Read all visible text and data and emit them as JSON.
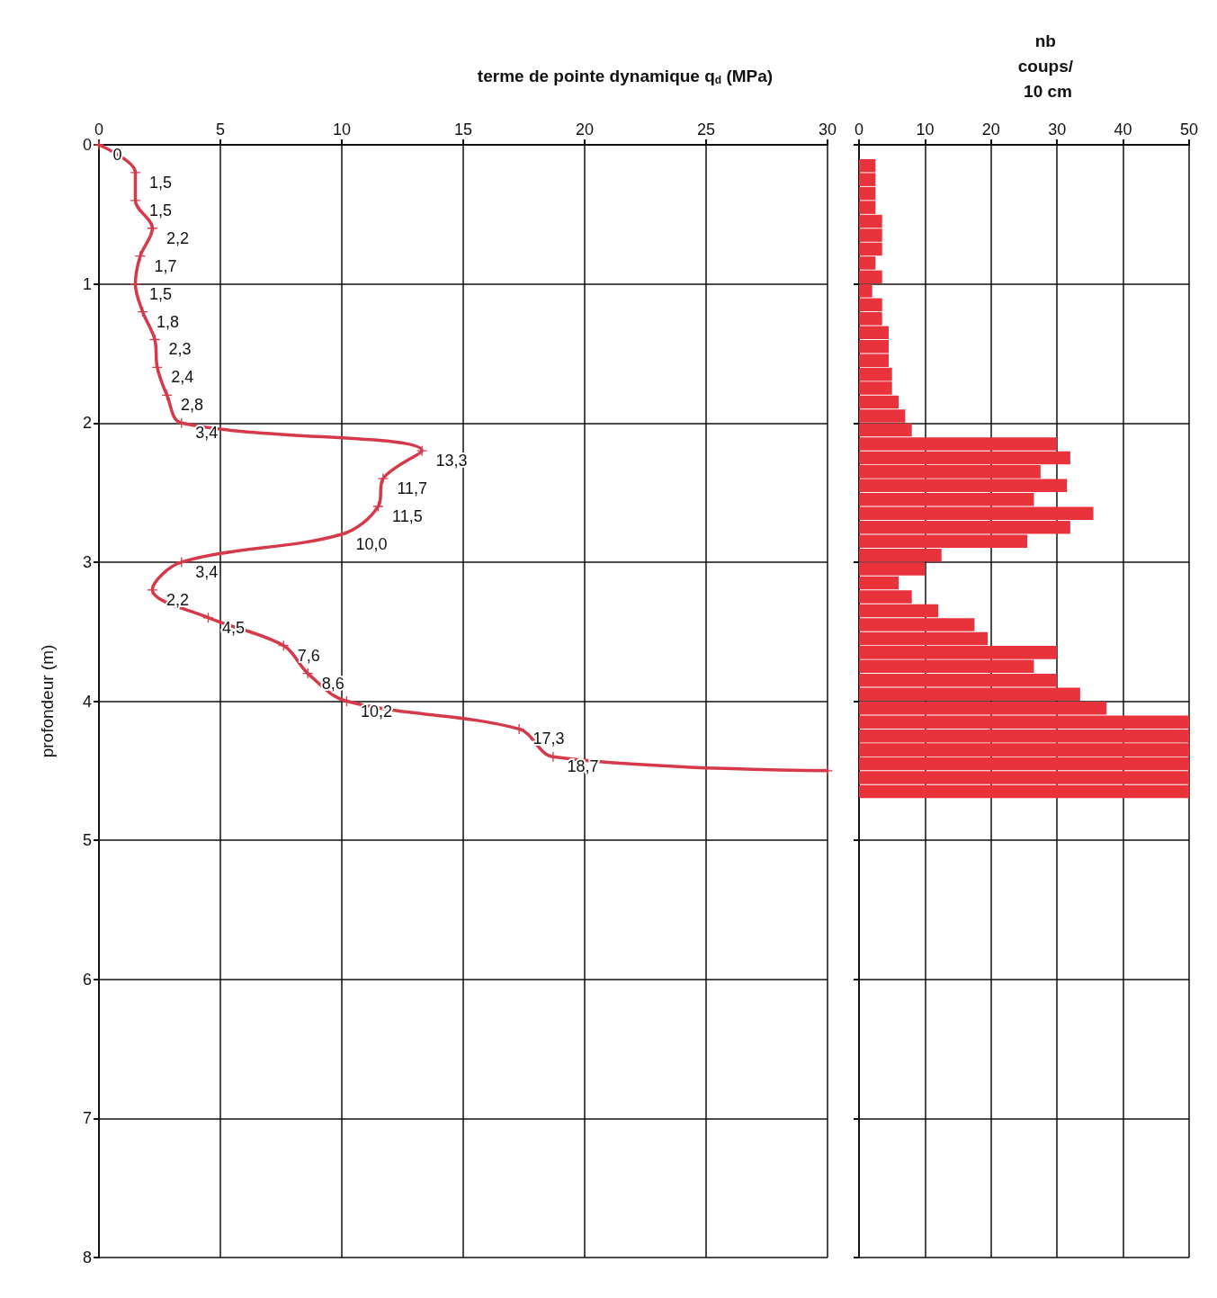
{
  "chart_data": [
    {
      "type": "line",
      "orientation": "horizontal",
      "xlabel": "terme de pointe dynamique q$_{d}$ (MPa)",
      "ylabel": "profondeur (m)",
      "x": [
        0,
        0.2,
        0.4,
        0.6,
        0.8,
        1.0,
        1.2,
        1.4,
        1.6,
        1.8,
        2.0,
        2.2,
        2.4,
        2.6,
        2.8,
        3.0,
        3.2,
        3.4,
        3.6,
        3.8,
        4.0,
        4.2,
        4.4,
        4.5
      ],
      "series": [
        {
          "color": "#d63a4a",
          "values": [
            0,
            1.5,
            1.5,
            2.2,
            1.7,
            1.5,
            1.8,
            2.3,
            2.4,
            2.8,
            3.4,
            13.3,
            11.7,
            11.5,
            10.0,
            3.4,
            2.2,
            4.5,
            7.6,
            8.6,
            10.2,
            17.3,
            18.7,
            30
          ],
          "value_labels": [
            "0",
            "1,5",
            "1,5",
            "2,2",
            "1,7",
            "1,5",
            "1,8",
            "2,3",
            "2,4",
            "2,8",
            "3,4",
            "13,3",
            "11,7",
            "11,5",
            "10,0",
            "3,4",
            "2,2",
            "4,5",
            "7,6",
            "8,6",
            "10,2",
            "17,3",
            "18,7",
            null
          ]
        }
      ],
      "xlim": [
        0,
        30
      ],
      "xticks": [
        0,
        5,
        10,
        15,
        20,
        25,
        30
      ],
      "ylim": [
        8,
        0
      ],
      "yticks": [
        0,
        1,
        2,
        3,
        4,
        5,
        6,
        7,
        8
      ],
      "grid": true,
      "marker": "cross",
      "line_style": "solid"
    },
    {
      "type": "bar",
      "orientation": "horizontal",
      "xlabel": "nb coups/ 10 cm",
      "color": "#e8323c",
      "x": [
        0.15,
        0.25,
        0.35,
        0.45,
        0.55,
        0.65,
        0.75,
        0.85,
        0.95,
        1.05,
        1.15,
        1.25,
        1.35,
        1.45,
        1.55,
        1.65,
        1.75,
        1.85,
        1.95,
        2.05,
        2.15,
        2.25,
        2.35,
        2.45,
        2.55,
        2.65,
        2.75,
        2.85,
        2.95,
        3.05,
        3.15,
        3.25,
        3.35,
        3.45,
        3.55,
        3.65,
        3.75,
        3.85,
        3.95,
        4.05,
        4.15,
        4.25,
        4.35,
        4.45,
        4.55,
        4.65
      ],
      "values": [
        2.5,
        2.5,
        2.5,
        2.5,
        3.5,
        3.5,
        3.5,
        2.5,
        3.5,
        2,
        3.5,
        3.5,
        4.5,
        4.5,
        4.5,
        5,
        5,
        6,
        7,
        8,
        30,
        32,
        27.5,
        31.5,
        26.5,
        35.5,
        32,
        25.5,
        12.5,
        10,
        6,
        8,
        12,
        17.5,
        19.5,
        30,
        26.5,
        30,
        33.5,
        37.5,
        50,
        50,
        50,
        50,
        50,
        50
      ],
      "xlim": [
        0,
        50
      ],
      "xticks": [
        0,
        10,
        20,
        30,
        40,
        50
      ],
      "ylim": [
        8,
        0
      ],
      "yticks": [
        0,
        1,
        2,
        3,
        4,
        5,
        6,
        7,
        8
      ],
      "grid": true,
      "tick_labels": "x"
    }
  ]
}
